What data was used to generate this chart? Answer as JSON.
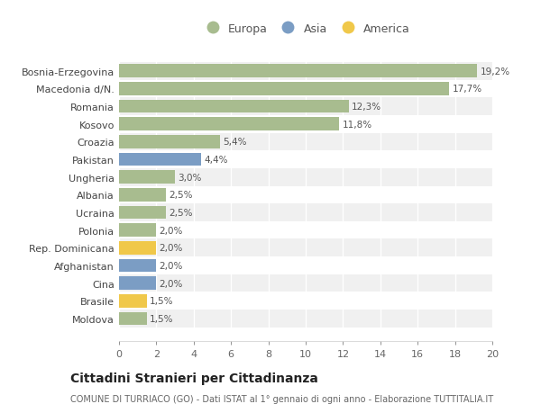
{
  "categories": [
    "Bosnia-Erzegovina",
    "Macedonia d/N.",
    "Romania",
    "Kosovo",
    "Croazia",
    "Pakistan",
    "Ungheria",
    "Albania",
    "Ucraina",
    "Polonia",
    "Rep. Dominicana",
    "Afghanistan",
    "Cina",
    "Brasile",
    "Moldova"
  ],
  "values": [
    19.2,
    17.7,
    12.3,
    11.8,
    5.4,
    4.4,
    3.0,
    2.5,
    2.5,
    2.0,
    2.0,
    2.0,
    2.0,
    1.5,
    1.5
  ],
  "labels": [
    "19,2%",
    "17,7%",
    "12,3%",
    "11,8%",
    "5,4%",
    "4,4%",
    "3,0%",
    "2,5%",
    "2,5%",
    "2,0%",
    "2,0%",
    "2,0%",
    "2,0%",
    "1,5%",
    "1,5%"
  ],
  "continents": [
    "Europa",
    "Europa",
    "Europa",
    "Europa",
    "Europa",
    "Asia",
    "Europa",
    "Europa",
    "Europa",
    "Europa",
    "America",
    "Asia",
    "Asia",
    "America",
    "Europa"
  ],
  "colors": {
    "Europa": "#a8bc8f",
    "Asia": "#7b9dc4",
    "America": "#f0c84a"
  },
  "legend_order": [
    "Europa",
    "Asia",
    "America"
  ],
  "xlim": [
    0,
    20
  ],
  "xticks": [
    0,
    2,
    4,
    6,
    8,
    10,
    12,
    14,
    16,
    18,
    20
  ],
  "title": "Cittadini Stranieri per Cittadinanza",
  "subtitle": "COMUNE DI TURRIACO (GO) - Dati ISTAT al 1° gennaio di ogni anno - Elaborazione TUTTITALIA.IT",
  "background_color": "#ffffff",
  "row_color_even": "#f0f0f0",
  "row_color_odd": "#ffffff",
  "grid_color": "#ffffff"
}
